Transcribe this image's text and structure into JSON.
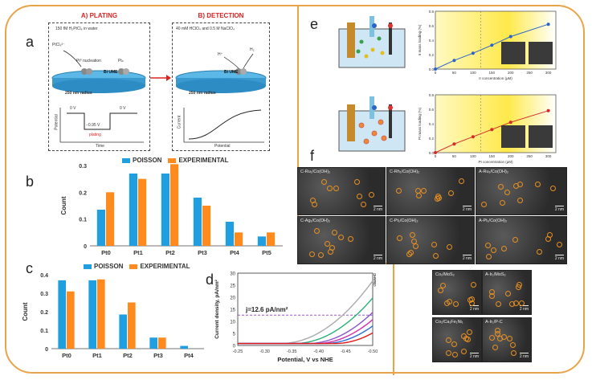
{
  "panels": {
    "a": {
      "label": "a",
      "plating": {
        "title": "A) PLATING",
        "solution": "150 fM H₂PtCl₆ in water",
        "precursor": "PtCl₆²⁻",
        "nucleation": "Pt⁰ nucleation",
        "ptn": "Ptₙ",
        "electrode": "Bi UME",
        "radius": "250 nm radius",
        "v0a": "0 V",
        "v0b": "0 V",
        "vplate": "−0.95 V",
        "plating_word": "plating",
        "ylabel": "Potential",
        "xlabel": "Time"
      },
      "detection": {
        "title": "B) DETECTION",
        "solution": "40 mM HClO₄ and 0.5 M NaClO₄",
        "hplus": "H⁺",
        "h2": "H₂",
        "electrode": "Bi UME",
        "radius": "250 nm radius",
        "ylabel": "Current",
        "xlabel": "Potential"
      }
    },
    "b": {
      "label": "b"
    },
    "c": {
      "label": "c"
    },
    "d": {
      "label": "d"
    },
    "e": {
      "label": "e"
    },
    "f": {
      "label": "f"
    }
  },
  "e_panel": {
    "top_plot": {
      "ylabel": "Ir mass loading (%)",
      "xlabel": "Ir concentration (μM)"
    },
    "bottom_plot": {
      "ylabel": "Pt mass loading (%)",
      "xlabel": "Pt concentration (μM)"
    }
  },
  "micrographs": [
    {
      "label": "C-Ru₁/Co(OH)₂",
      "scale": "2 nm"
    },
    {
      "label": "C-Rh₁/Co(OH)₂",
      "scale": "2 nm"
    },
    {
      "label": "A-Ru₁/Co(OH)₂",
      "scale": "2 nm"
    },
    {
      "label": "C-Ag₁/Co(OH)₂",
      "scale": "2 nm"
    },
    {
      "label": "C-Pt₁/Co(OH)₂",
      "scale": "2 nm"
    },
    {
      "label": "A-Pt₁/Co(OH)₂",
      "scale": "2 nm"
    },
    {
      "label": "Co₁/MoS₂",
      "scale": "2 nm"
    },
    {
      "label": "A-Ir₁/MoS₂",
      "scale": "2 nm"
    },
    {
      "label": "Co₁/Ca₁Fe₁Ni₁",
      "scale": "2 nm"
    },
    {
      "label": "A-Ir₁/P-C",
      "scale": "2 nm"
    }
  ],
  "chart_data": [
    {
      "type": "bar",
      "id": "b",
      "categories": [
        "Pt0",
        "Pt1",
        "Pt2",
        "Pt3",
        "Pt4",
        "Pt5"
      ],
      "series": [
        {
          "name": "POISSON",
          "values": [
            0.135,
            0.27,
            0.27,
            0.18,
            0.09,
            0.035
          ],
          "color": "#1f9ee0"
        },
        {
          "name": "EXPERIMENTAL",
          "values": [
            0.2,
            0.25,
            0.305,
            0.15,
            0.05,
            0.05
          ],
          "color": "#ff8a1e"
        }
      ],
      "ylabel": "Count",
      "ylim": [
        0,
        0.3
      ],
      "yticks": [
        "0",
        "0.1",
        "0.2",
        "0.3"
      ]
    },
    {
      "type": "bar",
      "id": "c",
      "categories": [
        "Pt0",
        "Pt1",
        "Pt2",
        "Pt3",
        "Pt4"
      ],
      "series": [
        {
          "name": "POISSON",
          "values": [
            0.37,
            0.37,
            0.185,
            0.06,
            0.015
          ],
          "color": "#1f9ee0"
        },
        {
          "name": "EXPERIMENTAL",
          "values": [
            0.31,
            0.375,
            0.25,
            0.06,
            0
          ],
          "color": "#ff8a1e"
        }
      ],
      "ylabel": "Count",
      "ylim": [
        0,
        0.4
      ],
      "yticks": [
        "0",
        "0.1",
        "0.2",
        "0.3",
        "0.4"
      ]
    },
    {
      "type": "line",
      "id": "d",
      "xlabel": "Potential, V vs NHE",
      "ylabel": "Current density, pA/nm²",
      "xlim": [
        -0.25,
        -0.5
      ],
      "ylim": [
        0,
        30
      ],
      "xticks": [
        "-0.25",
        "-0.30",
        "-0.35",
        "-0.40",
        "-0.45",
        "-0.50"
      ],
      "yticks": [
        "0",
        "5",
        "10",
        "15",
        "20",
        "25",
        "30"
      ],
      "annotation": "j=12.6 pA/nm²",
      "jline": 12.6,
      "series": [
        {
          "name": "0",
          "onset": -0.33,
          "color": "#aaaaaa"
        },
        {
          "name": "1",
          "onset": -0.355,
          "color": "#2bb07a"
        },
        {
          "name": "2",
          "onset": -0.38,
          "color": "#8855cc"
        },
        {
          "name": "3",
          "onset": -0.395,
          "color": "#cc33aa"
        },
        {
          "name": "4",
          "onset": -0.41,
          "color": "#2c6fd1"
        },
        {
          "name": "5",
          "onset": -0.43,
          "color": "#e01818"
        }
      ]
    },
    {
      "type": "line",
      "id": "e-top",
      "x": [
        0,
        50,
        100,
        150,
        200,
        300
      ],
      "y": [
        0.0,
        0.12,
        0.22,
        0.33,
        0.45,
        0.62
      ],
      "xticks": [
        "0",
        "50",
        "100",
        "150",
        "200",
        "250",
        "300"
      ],
      "yticks": [
        "0.0",
        "0.2",
        "0.4",
        "0.6",
        "0.8"
      ],
      "ylim": [
        0,
        0.8
      ],
      "xlim": [
        0,
        320
      ],
      "color": "#2b63c9"
    },
    {
      "type": "line",
      "id": "e-bottom",
      "x": [
        0,
        50,
        100,
        150,
        200,
        300
      ],
      "y": [
        0.0,
        0.12,
        0.22,
        0.32,
        0.42,
        0.58
      ],
      "xticks": [
        "0",
        "50",
        "100",
        "150",
        "200",
        "250",
        "300"
      ],
      "yticks": [
        "0.0",
        "0.2",
        "0.4",
        "0.6",
        "0.8"
      ],
      "ylim": [
        0,
        0.8
      ],
      "xlim": [
        0,
        320
      ],
      "color": "#d62a2a"
    }
  ]
}
